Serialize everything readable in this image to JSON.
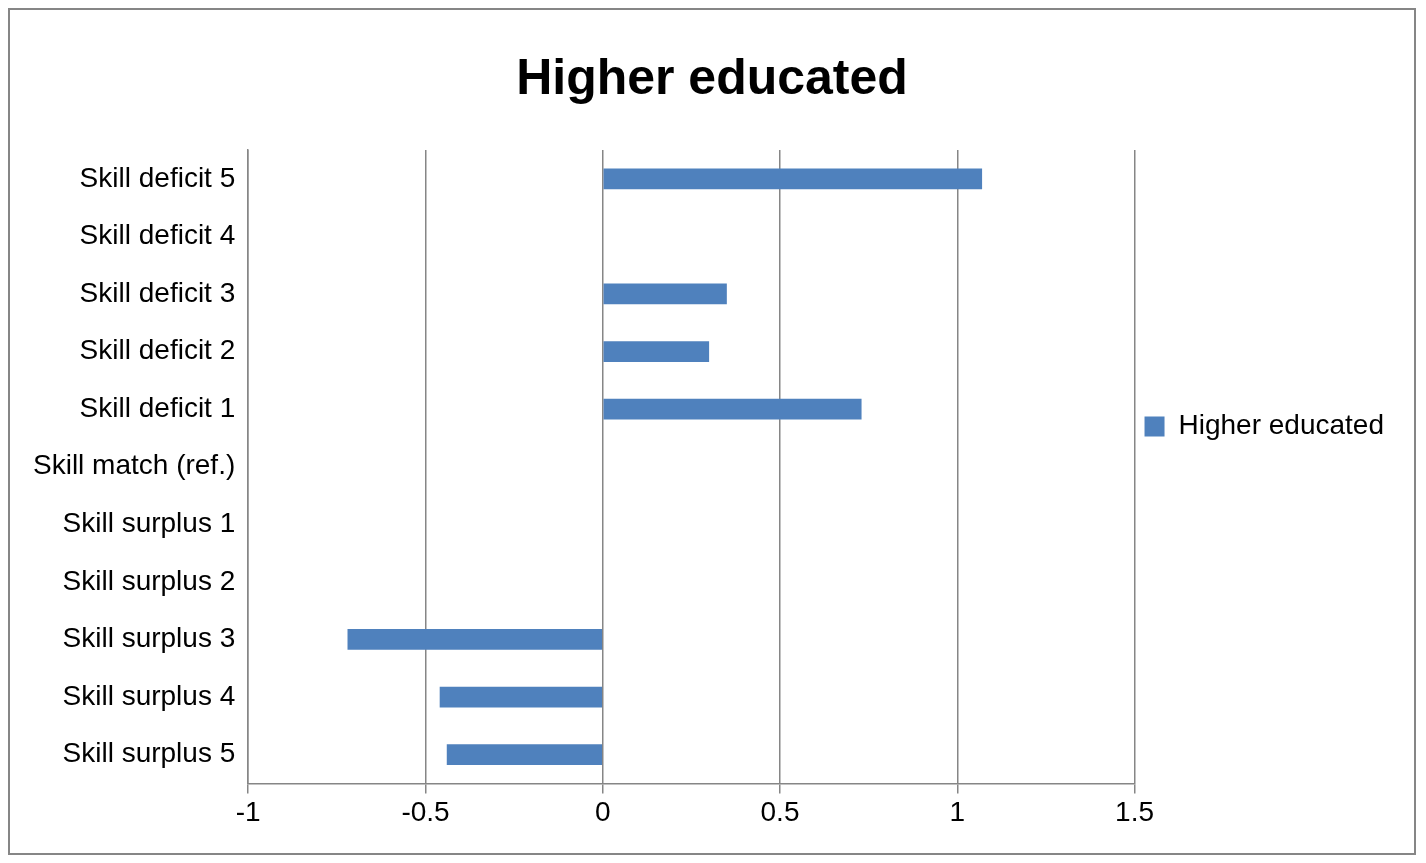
{
  "chart_data": {
    "type": "bar",
    "orientation": "horizontal",
    "title": "Higher educated",
    "categories": [
      "Skill deficit 5",
      "Skill deficit 4",
      "Skill deficit 3",
      "Skill deficit 2",
      "Skill deficit 1",
      "Skill match (ref.)",
      "Skill surplus 1",
      "Skill surplus 2",
      "Skill surplus 3",
      "Skill surplus 4",
      "Skill surplus 5"
    ],
    "series": [
      {
        "name": "Higher educated",
        "color": "#4f81bd",
        "values": [
          1.07,
          0,
          0.35,
          0.3,
          0.73,
          0,
          0,
          0,
          -0.72,
          -0.46,
          -0.44
        ]
      }
    ],
    "xlim": [
      -1,
      1.5
    ],
    "xticks": [
      -1,
      -0.5,
      0,
      0.5,
      1,
      1.5
    ],
    "grid": "x",
    "legend": "right"
  }
}
